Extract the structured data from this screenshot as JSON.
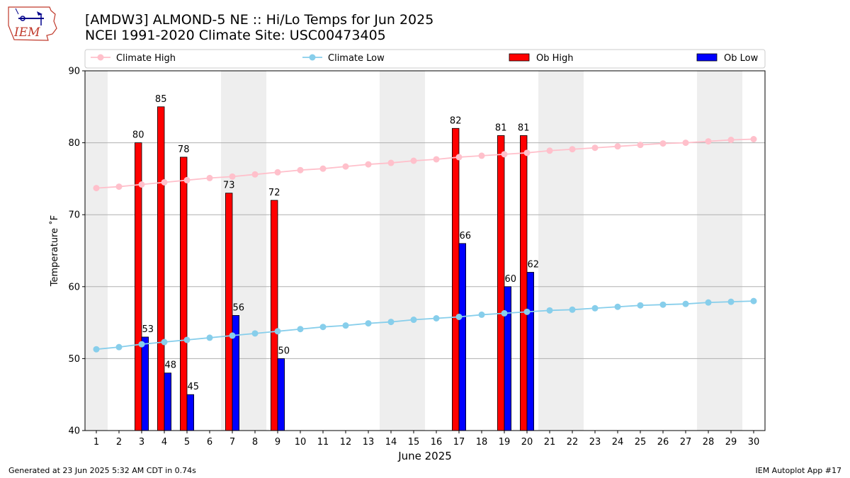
{
  "header": {
    "title_line1": "[AMDW3] ALMOND-5 NE :: Hi/Lo Temps for Jun 2025",
    "title_line2": "NCEI 1991-2020 Climate Site: USC00473405",
    "logo_text": "IEM"
  },
  "footer": {
    "left": "Generated at 23 Jun 2025 5:32 AM CDT in 0.74s",
    "right": "IEM Autoplot App #17"
  },
  "chart_data": {
    "type": "bar",
    "xlabel": "June 2025",
    "ylabel": "Temperature ˚F",
    "ylim": [
      40,
      90
    ],
    "yticks": [
      40,
      50,
      60,
      70,
      80,
      90
    ],
    "xlim": [
      0.5,
      30.5
    ],
    "days": [
      1,
      2,
      3,
      4,
      5,
      6,
      7,
      8,
      9,
      10,
      11,
      12,
      13,
      14,
      15,
      16,
      17,
      18,
      19,
      20,
      21,
      22,
      23,
      24,
      25,
      26,
      27,
      28,
      29,
      30
    ],
    "weekend_bands": [
      [
        0.5,
        1.5
      ],
      [
        6.5,
        8.5
      ],
      [
        13.5,
        15.5
      ],
      [
        20.5,
        22.5
      ],
      [
        27.5,
        29.5
      ]
    ],
    "grid": "horizontal",
    "legend": {
      "placement": "top",
      "entries": [
        "Climate High",
        "Climate Low",
        "Ob High",
        "Ob Low"
      ]
    },
    "series": [
      {
        "name": "Climate High",
        "kind": "line",
        "color": "#ffc0cb",
        "values": [
          73.7,
          73.9,
          74.2,
          74.5,
          74.8,
          75.1,
          75.3,
          75.6,
          75.9,
          76.2,
          76.4,
          76.7,
          77.0,
          77.2,
          77.5,
          77.7,
          78.0,
          78.2,
          78.4,
          78.6,
          78.9,
          79.1,
          79.3,
          79.5,
          79.7,
          79.9,
          80.0,
          80.2,
          80.4,
          80.5
        ]
      },
      {
        "name": "Climate Low",
        "kind": "line",
        "color": "#87ceeb",
        "values": [
          51.3,
          51.6,
          52.0,
          52.3,
          52.6,
          52.9,
          53.2,
          53.5,
          53.8,
          54.1,
          54.4,
          54.6,
          54.9,
          55.1,
          55.4,
          55.6,
          55.8,
          56.1,
          56.3,
          56.5,
          56.7,
          56.8,
          57.0,
          57.2,
          57.4,
          57.5,
          57.6,
          57.8,
          57.9,
          58.0
        ]
      },
      {
        "name": "Ob High",
        "kind": "bar",
        "color": "#ff0000",
        "points": [
          {
            "day": 3,
            "value": 80
          },
          {
            "day": 4,
            "value": 85
          },
          {
            "day": 5,
            "value": 78
          },
          {
            "day": 7,
            "value": 73
          },
          {
            "day": 9,
            "value": 72
          },
          {
            "day": 17,
            "value": 82
          },
          {
            "day": 19,
            "value": 81
          },
          {
            "day": 20,
            "value": 81
          }
        ]
      },
      {
        "name": "Ob Low",
        "kind": "bar",
        "color": "#0000ff",
        "points": [
          {
            "day": 3,
            "value": 53
          },
          {
            "day": 4,
            "value": 48
          },
          {
            "day": 5,
            "value": 45
          },
          {
            "day": 7,
            "value": 56
          },
          {
            "day": 9,
            "value": 50
          },
          {
            "day": 17,
            "value": 66
          },
          {
            "day": 19,
            "value": 60
          },
          {
            "day": 20,
            "value": 62
          }
        ]
      }
    ]
  }
}
